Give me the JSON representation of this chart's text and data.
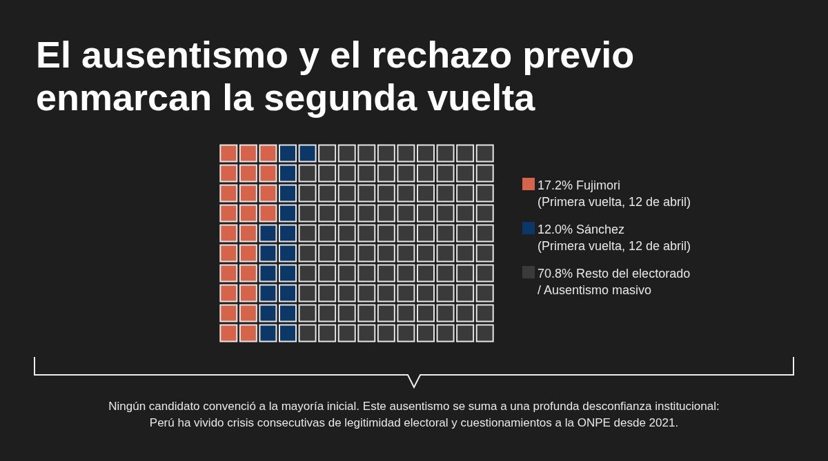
{
  "chart_data": {
    "type": "other",
    "title": "El ausentismo y el rechazo previo enmarcan la segunda vuelta",
    "categories": [
      "Fujimori\n(Primera vuelta, 12 de abril)",
      "Sánchez\n(Primera vuelta, 12 de abril)",
      "Resto del electorado\n/ Ausentismo masivo"
    ],
    "values": [
      17.2,
      12.0,
      70.8
    ],
    "value_labels": [
      "17.2%",
      "12.0%",
      "70.8%"
    ],
    "colors": [
      "#d6644a",
      "#0c3868",
      "#3a3a3a"
    ],
    "annotations": [
      "Ningún candidato convenció a la mayoría inicial. Este ausentismo se suma a una profunda desconfianza institucional:",
      "Perú ha vivido crisis consecutivas de legitimidad electoral y cuestionamientos a la ONPE desde 2021."
    ]
  }
}
